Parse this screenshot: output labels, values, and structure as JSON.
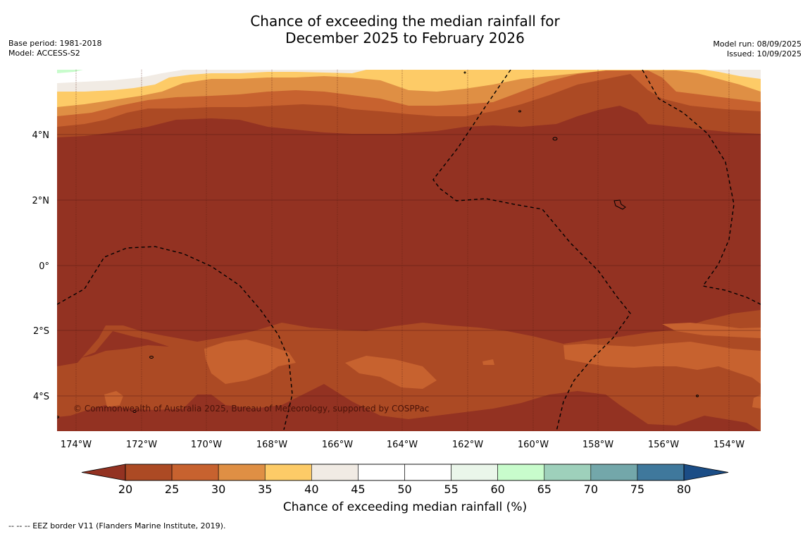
{
  "title_line1": "Chance of exceeding the median rainfall for",
  "title_line2": "December 2025 to February 2026",
  "meta_left": [
    "Base period: 1981-2018",
    "Model: ACCESS-S2"
  ],
  "meta_right": [
    "Model run: 08/09/2025",
    "Issued: 10/09/2025"
  ],
  "copyright": "© Commonwealth of Australia 2025, Bureau of Meteorology, supported by COSPPac",
  "lat_ticks": [
    "4°N",
    "2°N",
    "0°",
    "2°S",
    "4°S"
  ],
  "lon_ticks": [
    "174°W",
    "172°W",
    "170°W",
    "168°W",
    "166°W",
    "164°W",
    "162°W",
    "160°W",
    "158°W",
    "156°W",
    "154°W"
  ],
  "colorbar": {
    "title": "Chance of exceeding median rainfall (%)",
    "ticks": [
      "20",
      "25",
      "30",
      "35",
      "40",
      "45",
      "50",
      "55",
      "60",
      "65",
      "70",
      "75",
      "80"
    ],
    "colors": [
      "#ac4a24",
      "#c7622f",
      "#df8f44",
      "#fdcb67",
      "#f1ebe4",
      "#ffffff",
      "#ffffff",
      "#eaf6ea",
      "#c8fccc",
      "#9ed0bb",
      "#73a7aa",
      "#3f789c"
    ],
    "under_color": "#933222",
    "over_color": "#1b4d86"
  },
  "map_colors": {
    "c20": "#933222",
    "c25": "#ac4a24",
    "c30": "#c7622f",
    "c35": "#df8f44",
    "c40": "#fdcb67",
    "c45": "#f1ebe4",
    "c50": "#ffffff",
    "c60": "#c8fccc"
  },
  "footnote": "--  --  -- EEZ border V11 (Flanders Marine Institute, 2019)."
}
